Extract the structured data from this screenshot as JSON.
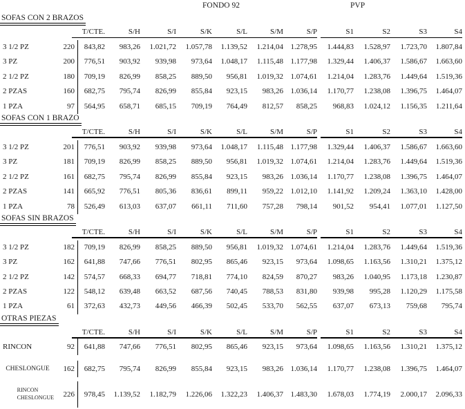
{
  "header": {
    "fondo": "FONDO 92",
    "pvp": "PVP"
  },
  "columns": [
    "T/CTE.",
    "S/H",
    "S/I",
    "S/K",
    "S/L",
    "S/M",
    "S/P",
    "S1",
    "S2",
    "S3",
    "S4"
  ],
  "colors": {
    "text": "#1a1a1a",
    "line": "#000000"
  },
  "sections": [
    {
      "title": "SOFAS CON 2 BRAZOS",
      "rows": [
        {
          "label": "3 1/2 PZ",
          "size": "220",
          "values": [
            "843,82",
            "983,26",
            "1.021,72",
            "1.057,78",
            "1.139,52",
            "1.214,04",
            "1.278,95",
            "1.444,83",
            "1.528,97",
            "1.723,70",
            "1.807,84"
          ]
        },
        {
          "label": "3 PZ",
          "size": "200",
          "values": [
            "776,51",
            "903,92",
            "939,98",
            "973,64",
            "1.048,17",
            "1.115,48",
            "1.177,98",
            "1.329,44",
            "1.406,37",
            "1.586,67",
            "1.663,60"
          ]
        },
        {
          "label": "2 1/2 PZ",
          "size": "180",
          "values": [
            "709,19",
            "826,99",
            "858,25",
            "889,50",
            "956,81",
            "1.019,32",
            "1.074,61",
            "1.214,04",
            "1.283,76",
            "1.449,64",
            "1.519,36"
          ]
        },
        {
          "label": "2 PZAS",
          "size": "160",
          "values": [
            "682,75",
            "795,74",
            "826,99",
            "855,84",
            "923,15",
            "983,26",
            "1.036,14",
            "1.170,77",
            "1.238,08",
            "1.396,75",
            "1.464,07"
          ]
        },
        {
          "label": "1 PZA",
          "size": "97",
          "values": [
            "564,95",
            "658,71",
            "685,15",
            "709,19",
            "764,49",
            "812,57",
            "858,25",
            "968,83",
            "1.024,12",
            "1.156,35",
            "1.211,64"
          ]
        }
      ]
    },
    {
      "title": "SOFAS CON 1 BRAZO",
      "rows": [
        {
          "label": "3 1/2 PZ",
          "size": "201",
          "values": [
            "776,51",
            "903,92",
            "939,98",
            "973,64",
            "1.048,17",
            "1.115,48",
            "1.177,98",
            "1.329,44",
            "1.406,37",
            "1.586,67",
            "1.663,60"
          ]
        },
        {
          "label": "3 PZ",
          "size": "181",
          "values": [
            "709,19",
            "826,99",
            "858,25",
            "889,50",
            "956,81",
            "1.019,32",
            "1.074,61",
            "1.214,04",
            "1.283,76",
            "1.449,64",
            "1.519,36"
          ]
        },
        {
          "label": "2 1/2 PZ",
          "size": "161",
          "values": [
            "682,75",
            "795,74",
            "826,99",
            "855,84",
            "923,15",
            "983,26",
            "1.036,14",
            "1.170,77",
            "1.238,08",
            "1.396,75",
            "1.464,07"
          ]
        },
        {
          "label": "2 PZAS",
          "size": "141",
          "values": [
            "665,92",
            "776,51",
            "805,36",
            "836,61",
            "899,11",
            "959,22",
            "1.012,10",
            "1.141,92",
            "1.209,24",
            "1.363,10",
            "1.428,00"
          ]
        },
        {
          "label": "1 PZA",
          "size": "78",
          "values": [
            "526,49",
            "613,03",
            "637,07",
            "661,11",
            "711,60",
            "757,28",
            "798,14",
            "901,52",
            "954,41",
            "1.077,01",
            "1.127,50"
          ]
        }
      ]
    },
    {
      "title": "SOFAS SIN BRAZOS",
      "rows": [
        {
          "label": "3 1/2 PZ",
          "size": "182",
          "values": [
            "709,19",
            "826,99",
            "858,25",
            "889,50",
            "956,81",
            "1.019,32",
            "1.074,61",
            "1.214,04",
            "1.283,76",
            "1.449,64",
            "1.519,36"
          ]
        },
        {
          "label": "3 PZ",
          "size": "162",
          "values": [
            "641,88",
            "747,66",
            "776,51",
            "802,95",
            "865,46",
            "923,15",
            "973,64",
            "1.098,65",
            "1.163,56",
            "1.310,21",
            "1.375,12"
          ]
        },
        {
          "label": "2 1/2 PZ",
          "size": "142",
          "values": [
            "574,57",
            "668,33",
            "694,77",
            "718,81",
            "774,10",
            "824,59",
            "870,27",
            "983,26",
            "1.040,95",
            "1.173,18",
            "1.230,87"
          ]
        },
        {
          "label": "2 PZAS",
          "size": "122",
          "values": [
            "548,12",
            "639,48",
            "663,52",
            "687,56",
            "740,45",
            "788,53",
            "831,80",
            "939,98",
            "995,28",
            "1.120,29",
            "1.175,58"
          ]
        },
        {
          "label": "1 PZA",
          "size": "61",
          "values": [
            "372,63",
            "432,73",
            "449,56",
            "466,39",
            "502,45",
            "533,70",
            "562,55",
            "637,07",
            "673,13",
            "759,68",
            "795,74"
          ]
        }
      ]
    },
    {
      "title": "OTRAS PIEZAS",
      "rows": [
        {
          "label": "RINCON",
          "size": "92",
          "values": [
            "641,88",
            "747,66",
            "776,51",
            "802,95",
            "865,46",
            "923,15",
            "973,64",
            "1.098,65",
            "1.163,56",
            "1.310,21",
            "1.375,12"
          ]
        },
        {
          "label": "CHESLONGUE",
          "size": "162",
          "values": [
            "682,75",
            "795,74",
            "826,99",
            "855,84",
            "923,15",
            "983,26",
            "1.036,14",
            "1.170,77",
            "1.238,08",
            "1.396,75",
            "1.464,07"
          ]
        },
        {
          "label": "RINCON\nCHESLONGUE",
          "size": "226",
          "values": [
            "978,45",
            "1.139,52",
            "1.182,79",
            "1.226,06",
            "1.322,23",
            "1.406,37",
            "1.483,30",
            "1.678,03",
            "1.774,19",
            "2.000,17",
            "2.096,33"
          ]
        }
      ]
    }
  ]
}
